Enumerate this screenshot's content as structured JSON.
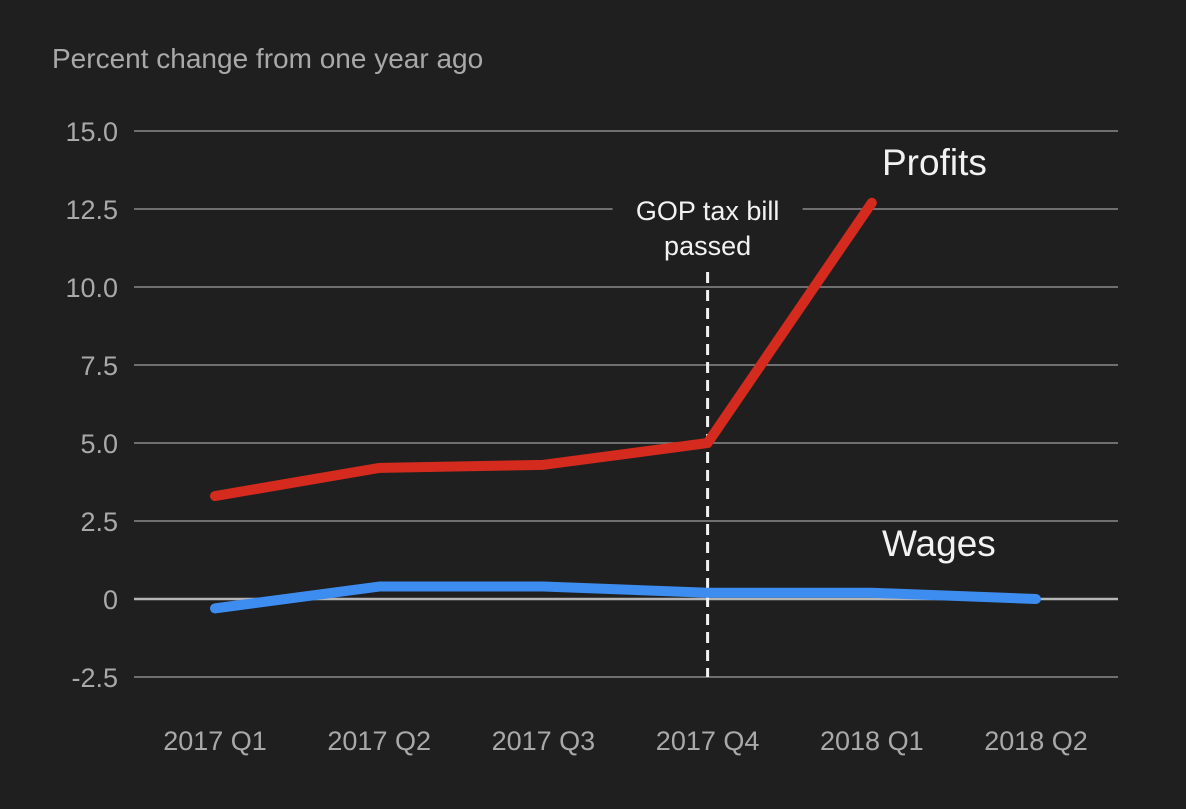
{
  "chart_data": {
    "type": "line",
    "ylabel": "Percent change from one year ago",
    "categories": [
      "2017 Q1",
      "2017 Q2",
      "2017 Q3",
      "2017 Q4",
      "2018 Q1",
      "2018 Q2"
    ],
    "yticks": [
      "15.0",
      "12.5",
      "10.0",
      "7.5",
      "5.0",
      "2.5",
      "0",
      "-2.5"
    ],
    "ylim": [
      -2.5,
      15.0
    ],
    "grid": true,
    "series": [
      {
        "name": "Profits",
        "color": "#d42b1e",
        "values": [
          3.3,
          4.2,
          4.3,
          5.0,
          12.7,
          null
        ]
      },
      {
        "name": "Wages",
        "color": "#3d8df0",
        "values": [
          -0.3,
          0.4,
          0.4,
          0.2,
          0.2,
          0.0
        ]
      }
    ],
    "annotation": {
      "lines": [
        "GOP tax bill",
        "passed"
      ],
      "at_category": "2017 Q4"
    },
    "colors": {
      "background": "#1f1f1f",
      "grid": "#8a8a8a",
      "zero_line": "#b5b5b5",
      "tick_text": "#a9a9a9",
      "label_text": "#f2f2f2"
    }
  }
}
